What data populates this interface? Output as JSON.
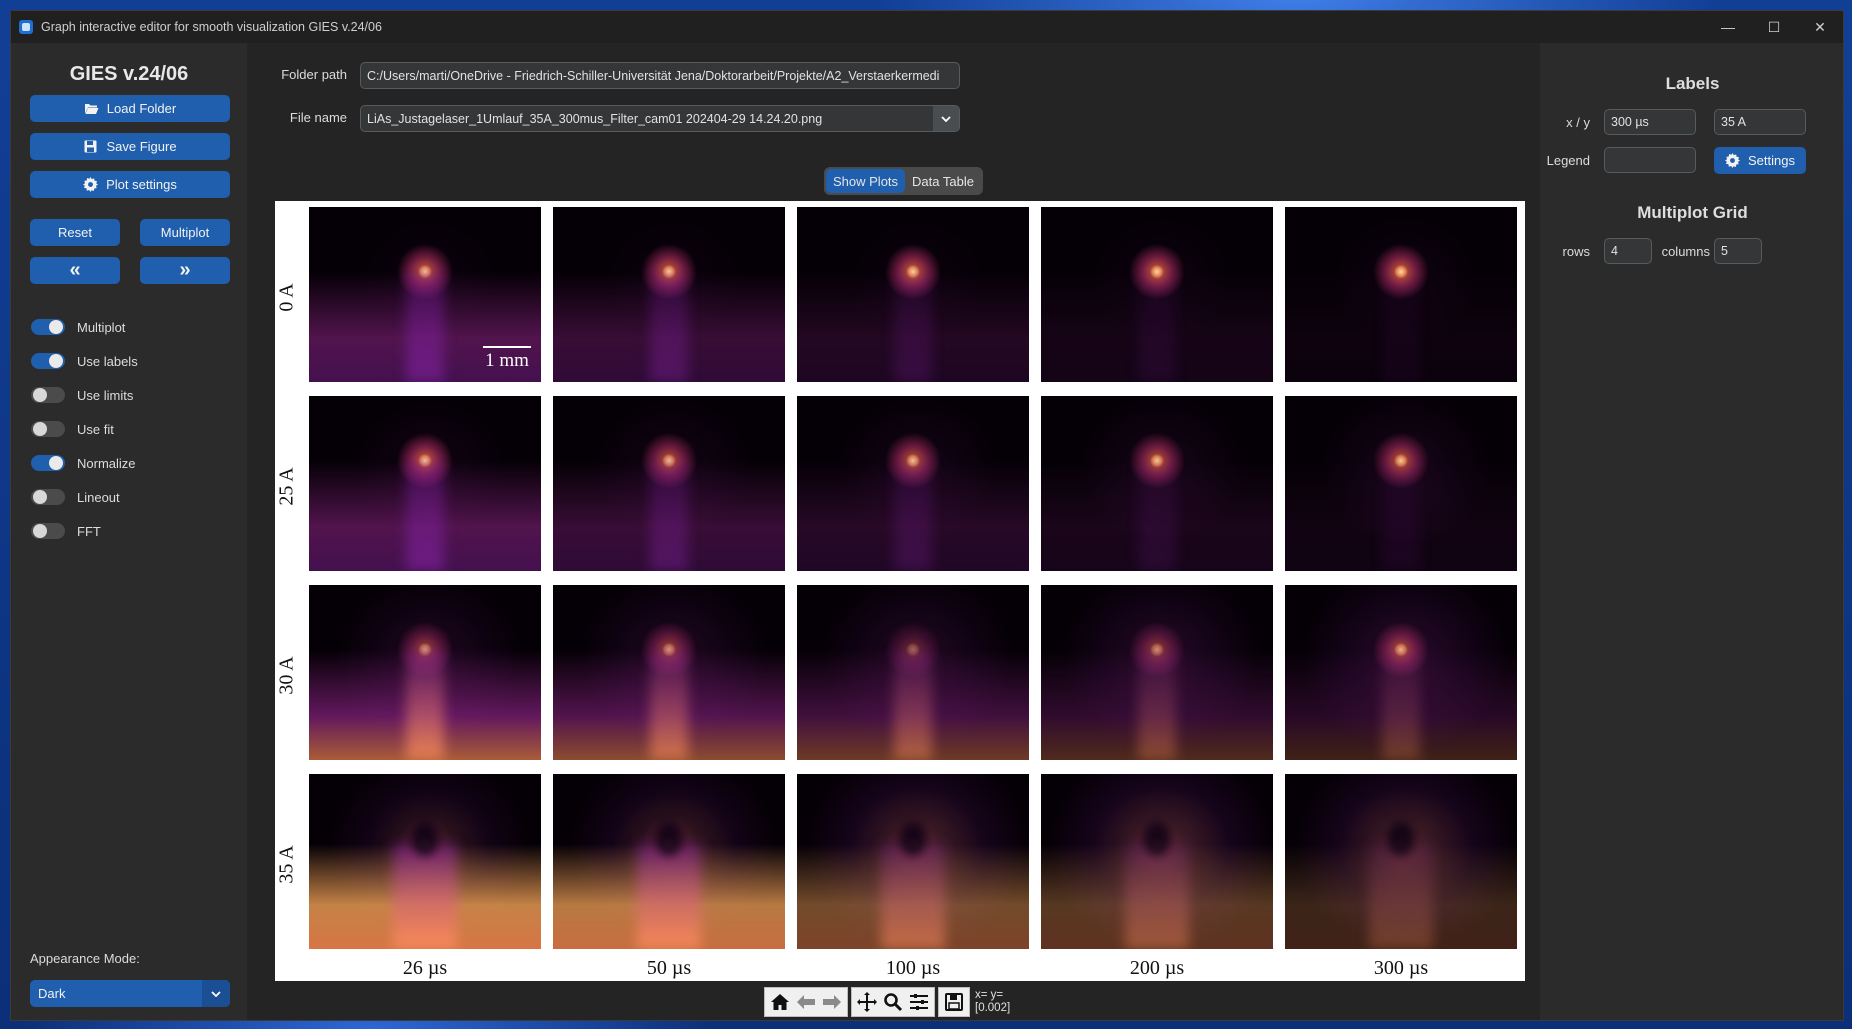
{
  "window": {
    "title": "Graph interactive editor for smooth visualization GIES v.24/06"
  },
  "sidebar": {
    "app_title": "GIES v.24/06",
    "load_folder": "Load Folder",
    "save_figure": "Save Figure",
    "plot_settings": "Plot settings",
    "reset": "Reset",
    "multiplot": "Multiplot",
    "prev": "«",
    "next": "»",
    "switches": [
      {
        "label": "Multiplot",
        "on": true
      },
      {
        "label": "Use labels",
        "on": true
      },
      {
        "label": "Use limits",
        "on": false
      },
      {
        "label": "Use fit",
        "on": false
      },
      {
        "label": "Normalize",
        "on": true
      },
      {
        "label": "Lineout",
        "on": false
      },
      {
        "label": "FFT",
        "on": false
      }
    ],
    "appearance_label": "Appearance Mode:",
    "appearance_value": "Dark"
  },
  "main": {
    "folder_label": "Folder path",
    "folder_value": "C:/Users/marti/OneDrive - Friedrich-Schiller-Universität Jena/Doktorarbeit/Projekte/A2_Verstaerkermedi",
    "file_label": "File name",
    "file_value": "LiAs_Justagelaser_1Umlauf_35A_300mus_Filter_cam01 202404-29 14.24.20.png",
    "tabs": [
      "Show Plots",
      "Data Table"
    ],
    "active_tab": "Show Plots",
    "figure": {
      "row_labels": [
        "0 A",
        "25 A",
        "30 A",
        "35 A"
      ],
      "col_labels": [
        "26 µs",
        "50 µs",
        "100 µs",
        "200 µs",
        "300 µs"
      ],
      "scalebar": "1 mm",
      "colormap": "inferno-like"
    },
    "toolbar": {
      "icons": [
        "home-icon",
        "back-arrow-icon",
        "forward-arrow-icon",
        "pan-icon",
        "zoom-icon",
        "subplots-icon",
        "save-icon"
      ],
      "coords_line1": "x= y=",
      "coords_line2": "[0.002]"
    }
  },
  "right_panel": {
    "labels_title": "Labels",
    "xy_label": "x / y",
    "x_value": "300 µs",
    "y_value": "35 A",
    "legend_label": "Legend",
    "legend_value": "",
    "settings_button": "Settings",
    "grid_title": "Multiplot Grid",
    "rows_label": "rows",
    "rows_value": "4",
    "columns_label": "columns",
    "columns_value": "5"
  },
  "colors": {
    "accent": "#1f5fae",
    "background": "#242424",
    "panel": "#2b2b2b"
  }
}
